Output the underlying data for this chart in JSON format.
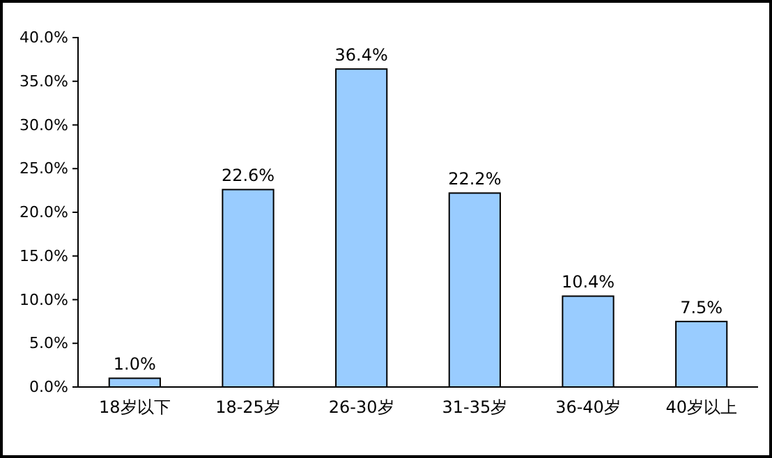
{
  "chart_data": {
    "type": "bar",
    "categories": [
      "18岁以下",
      "18-25岁",
      "26-30岁",
      "31-35岁",
      "36-40岁",
      "40岁以上"
    ],
    "values": [
      1.0,
      22.6,
      36.4,
      22.2,
      10.4,
      7.5
    ],
    "value_labels": [
      "1.0%",
      "22.6%",
      "36.4%",
      "22.2%",
      "10.4%",
      "7.5%"
    ],
    "color": "#99ccff",
    "ylim": [
      0,
      40
    ],
    "yticks": [
      {
        "value": 0,
        "label": "0.0%"
      },
      {
        "value": 5,
        "label": "5.0%"
      },
      {
        "value": 10,
        "label": "10.0%"
      },
      {
        "value": 15,
        "label": "15.0%"
      },
      {
        "value": 20,
        "label": "20.0%"
      },
      {
        "value": 25,
        "label": "25.0%"
      },
      {
        "value": 30,
        "label": "30.0%"
      },
      {
        "value": 35,
        "label": "35.0%"
      },
      {
        "value": 40,
        "label": "40.0%"
      }
    ],
    "grid": false
  }
}
